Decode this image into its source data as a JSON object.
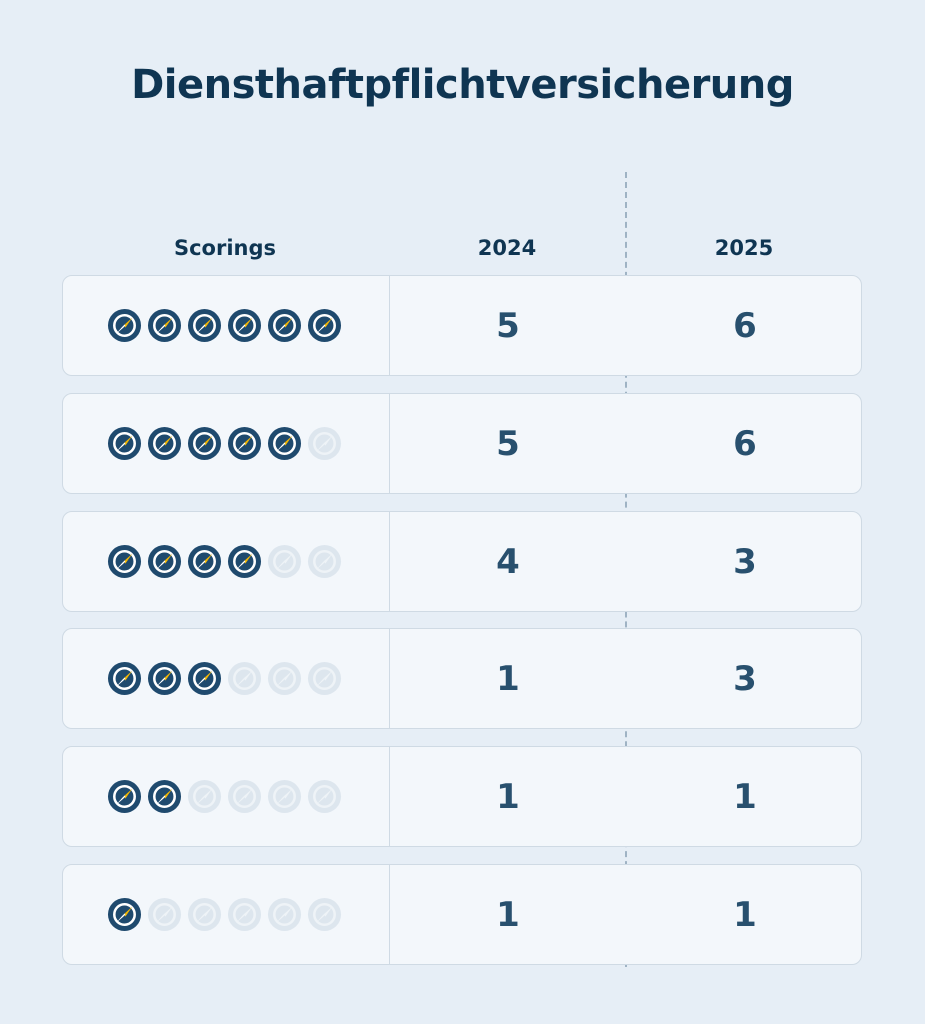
{
  "title": "Diensthaftpflichtversicherung",
  "colors": {
    "icon_active": "#1f4a6e",
    "icon_inactive": "#dde6ee",
    "needle": "#f2b705",
    "text": "#0f3552"
  },
  "icon_name": "compass-icon",
  "headers": {
    "scorings": "Scorings",
    "y2024": "2024",
    "y2025": "2025"
  },
  "chart_data": {
    "type": "table",
    "title": "Diensthaftpflichtversicherung",
    "columns": [
      "Scorings",
      "2024",
      "2025"
    ],
    "max_score": 6,
    "rows": [
      {
        "score": 6,
        "y2024": "5",
        "y2025": "6"
      },
      {
        "score": 5,
        "y2024": "5",
        "y2025": "6"
      },
      {
        "score": 4,
        "y2024": "4",
        "y2025": "3"
      },
      {
        "score": 3,
        "y2024": "1",
        "y2025": "3"
      },
      {
        "score": 2,
        "y2024": "1",
        "y2025": "1"
      },
      {
        "score": 1,
        "y2024": "1",
        "y2025": "1"
      }
    ]
  }
}
